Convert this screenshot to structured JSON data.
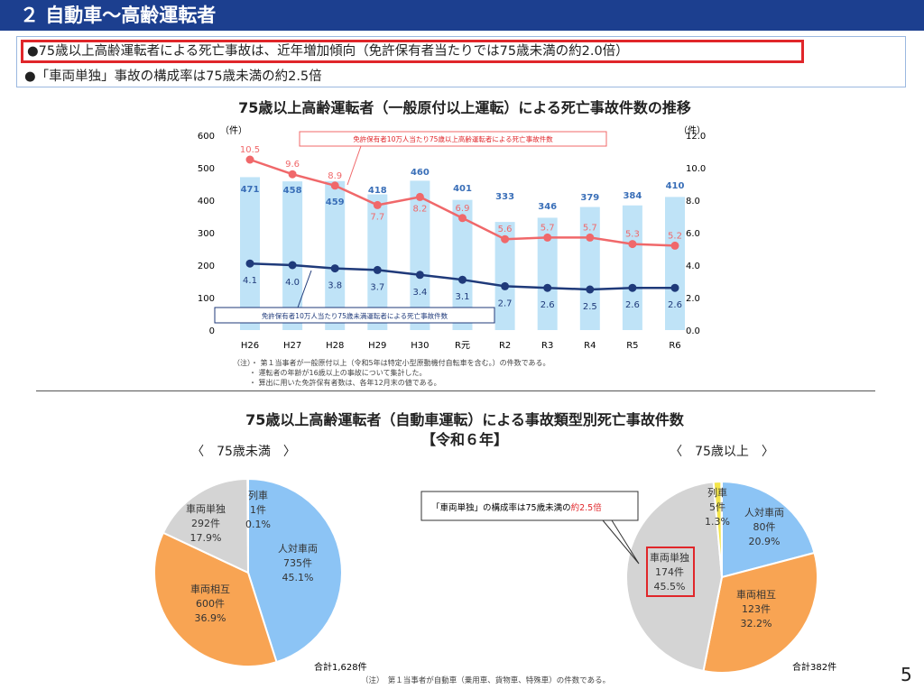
{
  "header": {
    "title": "２ 自動車～高齢運転者"
  },
  "summary": {
    "line1": "●75歳以上高齢運転者による死亡事故は、近年増加傾向（免許保有者当たりでは75歳未満の約2.0倍）",
    "line2": "●「車両単独」事故の構成率は75歳未満の約2.5倍"
  },
  "chart_data": [
    {
      "type": "bar+line",
      "title": "75歳以上高齢運転者（一般原付以上運転）による死亡事故件数の推移",
      "categories": [
        "H26",
        "H27",
        "H28",
        "H29",
        "H30",
        "R元",
        "R2",
        "R3",
        "R4",
        "R5",
        "R6"
      ],
      "left_axis": {
        "unit": "（件）",
        "ylim": [
          0,
          600
        ],
        "ticks": [
          "0",
          "100",
          "200",
          "300",
          "400",
          "500",
          "600"
        ]
      },
      "right_axis": {
        "unit": "（件）",
        "ylim": [
          0,
          12
        ],
        "ticks": [
          "0.0",
          "2.0",
          "4.0",
          "6.0",
          "8.0",
          "10.0",
          "12.0"
        ]
      },
      "bars": {
        "values": [
          471,
          458,
          459,
          418,
          460,
          401,
          333,
          346,
          379,
          384,
          410
        ],
        "color": "#bfe3f7",
        "label_color": "#3a6fb8"
      },
      "series": [
        {
          "name": "免許保有者10万人当たり75歳以上高齢運転者による死亡事故件数",
          "axis": "right",
          "values": [
            10.5,
            9.6,
            8.9,
            7.7,
            8.2,
            6.9,
            5.6,
            5.7,
            5.7,
            5.3,
            5.2
          ],
          "color": "#f0686a"
        },
        {
          "name": "免許保有者10万人当たり75歳未満運転者による死亡事故件数",
          "axis": "right",
          "values": [
            4.1,
            4.0,
            3.8,
            3.7,
            3.4,
            3.1,
            2.7,
            2.6,
            2.5,
            2.6,
            2.6
          ],
          "color": "#1f3a7a"
        }
      ],
      "notes": [
        "（注）・ 第１当事者が一般原付以上（令和5年は特定小型原動機付自転車を含む。）の件数である。",
        "・ 運転者の年齢が16歳以上の事故について集計した。",
        "・ 算出に用いた免許保有者数は、各年12月末の値である。"
      ]
    },
    {
      "type": "pie",
      "title": "75歳以上高齢運転者（自動車運転）による事故類型別死亡事故件数",
      "subtitle": "【令和６年】",
      "label": "〈　75歳未満　〉",
      "total": "合計1,628件",
      "slices": [
        {
          "name": "人対車両",
          "count": "735件",
          "pct": 45.1,
          "color": "#8cc4f5"
        },
        {
          "name": "車両相互",
          "count": "600件",
          "pct": 36.9,
          "color": "#f8a453"
        },
        {
          "name": "車両単独",
          "count": "292件",
          "pct": 17.9,
          "color": "#d4d4d4"
        },
        {
          "name": "列車",
          "count": "1件",
          "pct": 0.1,
          "color": "#f3e54a"
        }
      ]
    },
    {
      "type": "pie",
      "label": "〈　75歳以上　〉",
      "total": "合計382件",
      "slices": [
        {
          "name": "人対車両",
          "count": "80件",
          "pct": 20.9,
          "color": "#8cc4f5"
        },
        {
          "name": "車両相互",
          "count": "123件",
          "pct": 32.2,
          "color": "#f8a453"
        },
        {
          "name": "車両単独",
          "count": "174件",
          "pct": 45.5,
          "color": "#d4d4d4"
        },
        {
          "name": "列車",
          "count": "5件",
          "pct": 1.3,
          "color": "#f3e54a"
        }
      ],
      "callout": {
        "text": "「車両単独」の構成率は75歳未満の",
        "highlight": "約2.5倍",
        "highlight_color": "#e0262a"
      }
    }
  ],
  "footnote": "（注）　第１当事者が自動車（乗用車、貨物車、特殊車）の件数である。",
  "page_number": "5"
}
